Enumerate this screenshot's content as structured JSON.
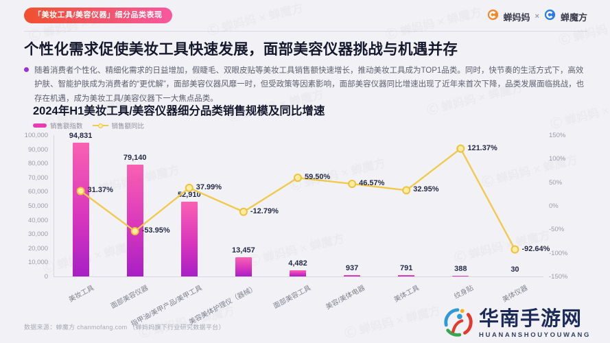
{
  "header": {
    "tag": "「美妆工具/美容仪器」细分品类表现",
    "brand_left": "蝉妈妈",
    "brand_sep": "×",
    "brand_right": "蝉魔方"
  },
  "title": "个性化需求促使美妆工具快速发展，面部美容仪器挑战与机遇并存",
  "summary": "随着消费者个性化、精细化需求的日益增加，假睫毛、双眼皮贴等美妆工具销售额快速增长，推动美妆工具成为TOP1品类。同时，快节奏的生活方式下，高效护肤、智能护肤成为消费者的“更优解”，面部美容仪器风靡一时，但受政策等因素影响，面部美容仪器同比增速出现了近年来首次下降，品类发展面临挑战，也存在机遇，成为美妆工具/美容仪器下一大焦点品类。",
  "chart_data": {
    "type": "bar",
    "title": "2024年H1美妆工具/美容仪器细分品类销售规模及同比增速",
    "legend": [
      "销售额指数",
      "销售额同比"
    ],
    "categories": [
      "美妆工具",
      "面部美容仪器",
      "指甲油/美甲产品/美甲工具",
      "美容美体护理仪（器械）",
      "面部美容工具",
      "美容/美体电器",
      "美体工具",
      "纹身贴",
      "美体仪器"
    ],
    "series": [
      {
        "name": "销售额指数",
        "type": "bar",
        "values": [
          94831,
          79140,
          52910,
          13457,
          4482,
          937,
          791,
          388,
          30
        ],
        "labels": [
          "94,831",
          "79,140",
          "52,910",
          "13,457",
          "4,482",
          "937",
          "791",
          "388",
          "30"
        ]
      },
      {
        "name": "销售额同比",
        "type": "line",
        "values": [
          31.37,
          -53.95,
          37.99,
          -12.79,
          59.5,
          46.57,
          32.95,
          121.37,
          -92.64
        ],
        "labels": [
          "31.37%",
          "-53.95%",
          "37.99%",
          "-12.79%",
          "59.50%",
          "46.57%",
          "32.95%",
          "121.37%",
          "-92.64%"
        ]
      }
    ],
    "left_axis": {
      "min": 0,
      "max": 100000,
      "step": 10000
    },
    "right_axis": {
      "min": -150,
      "max": 150,
      "step": 50,
      "suffix": "%"
    },
    "grid": false,
    "legend_position": "top-left",
    "colors": {
      "bar_top": "#f961b2",
      "bar_bottom": "#a81fc6",
      "line": "#f0c94d",
      "marker_fill": "#fdeca2",
      "marker_stroke": "#edc33c"
    }
  },
  "source": "数据来源：蝉魔方 chanmofang.com （蝉妈妈旗下行业研究数据平台）",
  "footer_logo": {
    "name": "华南手游网",
    "sub": "HUANANSHOUYOUWANG"
  },
  "watermark": "蝉妈妈 × 蝉魔方"
}
